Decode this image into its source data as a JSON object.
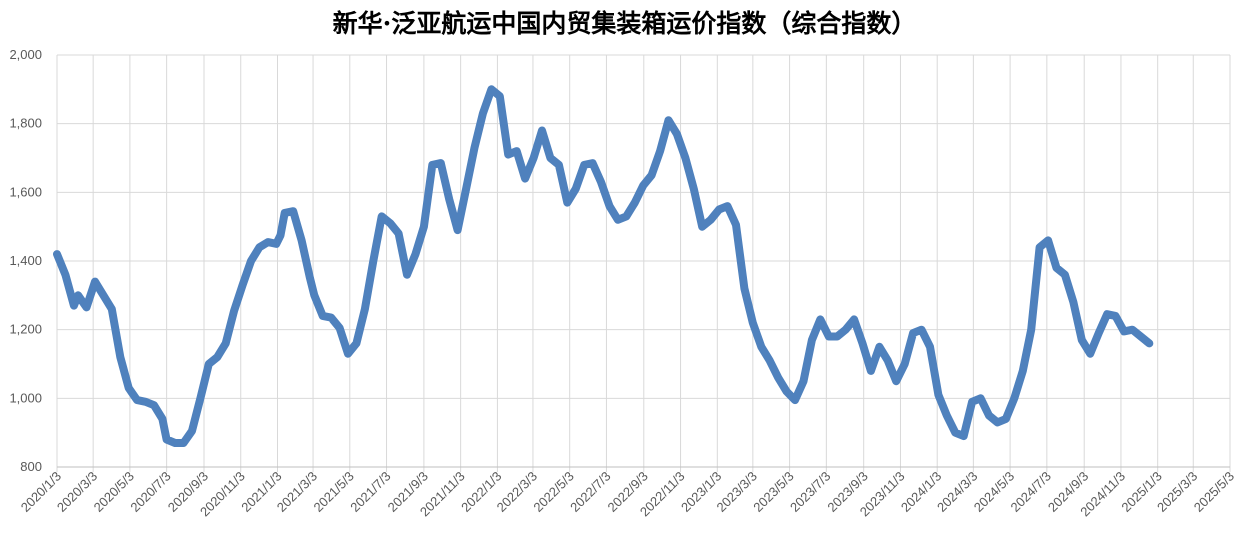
{
  "chart_data": {
    "type": "line",
    "title": "新华·泛亚航运中国内贸集装箱运价指数（综合指数）",
    "xlabel": "",
    "ylabel": "",
    "ylim": [
      800,
      2000
    ],
    "yticks": [
      "800",
      "1,000",
      "1,200",
      "1,400",
      "1,600",
      "1,800",
      "2,000"
    ],
    "ytick_values": [
      800,
      1000,
      1200,
      1400,
      1600,
      1800,
      2000
    ],
    "xticks": [
      "2020/1/3",
      "2020/3/3",
      "2020/5/3",
      "2020/7/3",
      "2020/9/3",
      "2020/11/3",
      "2021/1/3",
      "2021/3/3",
      "2021/5/3",
      "2021/7/3",
      "2021/9/3",
      "2021/11/3",
      "2022/1/3",
      "2022/3/3",
      "2022/5/3",
      "2022/7/3",
      "2022/9/3",
      "2022/11/3",
      "2023/1/3",
      "2023/3/3",
      "2023/5/3",
      "2023/7/3",
      "2023/9/3",
      "2023/11/3",
      "2024/1/3",
      "2024/3/3",
      "2024/5/3",
      "2024/7/3",
      "2024/9/3",
      "2024/11/3",
      "2025/1/3",
      "2025/3/3",
      "2025/5/3"
    ],
    "grid": true,
    "legend": "none",
    "line_color": "#4f81bd",
    "series": [
      {
        "values": [
          [
            "2020/1/3",
            1420
          ],
          [
            "2020/1/17",
            1360
          ],
          [
            "2020/1/31",
            1270
          ],
          [
            "2020/2/7",
            1300
          ],
          [
            "2020/2/21",
            1265
          ],
          [
            "2020/3/6",
            1340
          ],
          [
            "2020/3/20",
            1300
          ],
          [
            "2020/4/3",
            1260
          ],
          [
            "2020/4/17",
            1120
          ],
          [
            "2020/5/1",
            1030
          ],
          [
            "2020/5/15",
            995
          ],
          [
            "2020/5/29",
            990
          ],
          [
            "2020/6/12",
            980
          ],
          [
            "2020/6/26",
            940
          ],
          [
            "2020/7/3",
            880
          ],
          [
            "2020/7/17",
            870
          ],
          [
            "2020/7/31",
            870
          ],
          [
            "2020/8/14",
            905
          ],
          [
            "2020/8/28",
            1000
          ],
          [
            "2020/9/11",
            1100
          ],
          [
            "2020/9/25",
            1120
          ],
          [
            "2020/10/9",
            1160
          ],
          [
            "2020/10/23",
            1255
          ],
          [
            "2020/11/6",
            1330
          ],
          [
            "2020/11/20",
            1400
          ],
          [
            "2020/12/4",
            1440
          ],
          [
            "2020/12/18",
            1455
          ],
          [
            "2021/1/1",
            1450
          ],
          [
            "2021/1/8",
            1475
          ],
          [
            "2021/1/15",
            1540
          ],
          [
            "2021/1/29",
            1545
          ],
          [
            "2021/2/12",
            1460
          ],
          [
            "2021/2/26",
            1350
          ],
          [
            "2021/3/5",
            1300
          ],
          [
            "2021/3/19",
            1240
          ],
          [
            "2021/4/2",
            1235
          ],
          [
            "2021/4/16",
            1205
          ],
          [
            "2021/4/30",
            1130
          ],
          [
            "2021/5/14",
            1160
          ],
          [
            "2021/5/28",
            1260
          ],
          [
            "2021/6/11",
            1400
          ],
          [
            "2021/6/25",
            1530
          ],
          [
            "2021/7/9",
            1510
          ],
          [
            "2021/7/23",
            1480
          ],
          [
            "2021/8/6",
            1360
          ],
          [
            "2021/8/20",
            1420
          ],
          [
            "2021/9/3",
            1500
          ],
          [
            "2021/9/17",
            1680
          ],
          [
            "2021/10/1",
            1685
          ],
          [
            "2021/10/15",
            1580
          ],
          [
            "2021/10/29",
            1490
          ],
          [
            "2021/11/12",
            1610
          ],
          [
            "2021/11/26",
            1730
          ],
          [
            "2021/12/10",
            1830
          ],
          [
            "2021/12/24",
            1900
          ],
          [
            "2022/1/7",
            1880
          ],
          [
            "2022/1/21",
            1710
          ],
          [
            "2022/2/4",
            1720
          ],
          [
            "2022/2/18",
            1640
          ],
          [
            "2022/3/4",
            1700
          ],
          [
            "2022/3/18",
            1780
          ],
          [
            "2022/4/1",
            1700
          ],
          [
            "2022/4/15",
            1680
          ],
          [
            "2022/4/29",
            1570
          ],
          [
            "2022/5/13",
            1610
          ],
          [
            "2022/5/27",
            1680
          ],
          [
            "2022/6/10",
            1685
          ],
          [
            "2022/6/24",
            1630
          ],
          [
            "2022/7/8",
            1560
          ],
          [
            "2022/7/22",
            1520
          ],
          [
            "2022/8/5",
            1530
          ],
          [
            "2022/8/19",
            1570
          ],
          [
            "2022/9/2",
            1620
          ],
          [
            "2022/9/16",
            1650
          ],
          [
            "2022/9/30",
            1720
          ],
          [
            "2022/10/14",
            1810
          ],
          [
            "2022/10/28",
            1770
          ],
          [
            "2022/11/11",
            1700
          ],
          [
            "2022/11/25",
            1610
          ],
          [
            "2022/12/9",
            1500
          ],
          [
            "2022/12/23",
            1520
          ],
          [
            "2023/1/6",
            1550
          ],
          [
            "2023/1/20",
            1560
          ],
          [
            "2023/2/3",
            1505
          ],
          [
            "2023/2/17",
            1320
          ],
          [
            "2023/3/3",
            1220
          ],
          [
            "2023/3/17",
            1150
          ],
          [
            "2023/3/31",
            1110
          ],
          [
            "2023/4/14",
            1060
          ],
          [
            "2023/4/28",
            1020
          ],
          [
            "2023/5/12",
            995
          ],
          [
            "2023/5/26",
            1050
          ],
          [
            "2023/6/9",
            1170
          ],
          [
            "2023/6/23",
            1230
          ],
          [
            "2023/7/7",
            1180
          ],
          [
            "2023/7/21",
            1180
          ],
          [
            "2023/8/4",
            1200
          ],
          [
            "2023/8/18",
            1230
          ],
          [
            "2023/9/1",
            1160
          ],
          [
            "2023/9/15",
            1080
          ],
          [
            "2023/9/29",
            1150
          ],
          [
            "2023/10/13",
            1110
          ],
          [
            "2023/10/27",
            1050
          ],
          [
            "2023/11/10",
            1100
          ],
          [
            "2023/11/24",
            1190
          ],
          [
            "2023/12/8",
            1200
          ],
          [
            "2023/12/22",
            1150
          ],
          [
            "2024/1/5",
            1010
          ],
          [
            "2024/1/19",
            950
          ],
          [
            "2024/2/2",
            900
          ],
          [
            "2024/2/16",
            890
          ],
          [
            "2024/3/1",
            990
          ],
          [
            "2024/3/15",
            1000
          ],
          [
            "2024/3/29",
            950
          ],
          [
            "2024/4/12",
            930
          ],
          [
            "2024/4/26",
            940
          ],
          [
            "2024/5/10",
            1000
          ],
          [
            "2024/5/24",
            1080
          ],
          [
            "2024/6/7",
            1200
          ],
          [
            "2024/6/21",
            1440
          ],
          [
            "2024/7/5",
            1460
          ],
          [
            "2024/7/19",
            1380
          ],
          [
            "2024/8/2",
            1360
          ],
          [
            "2024/8/16",
            1280
          ],
          [
            "2024/8/30",
            1170
          ],
          [
            "2024/9/13",
            1130
          ],
          [
            "2024/9/27",
            1190
          ],
          [
            "2024/10/11",
            1245
          ],
          [
            "2024/10/25",
            1240
          ],
          [
            "2024/11/8",
            1195
          ],
          [
            "2024/11/22",
            1200
          ],
          [
            "2024/12/6",
            1180
          ],
          [
            "2024/12/20",
            1160
          ]
        ]
      }
    ]
  }
}
